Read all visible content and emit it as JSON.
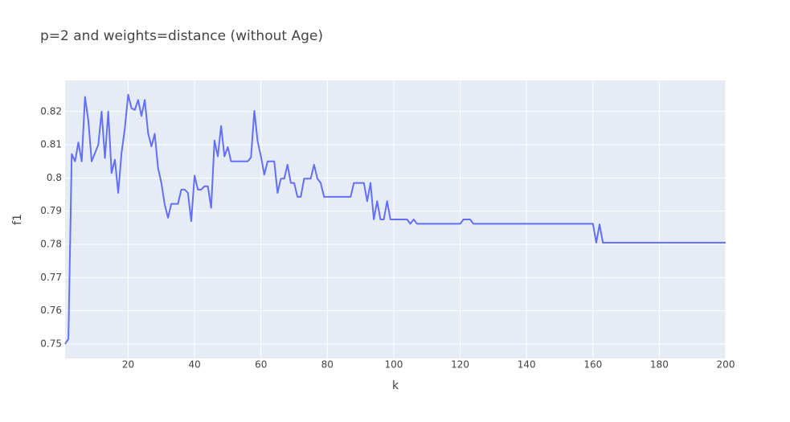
{
  "chart_data": {
    "type": "line",
    "title": "p=2 and weights=distance (without Age)",
    "x_label": "k",
    "y_label": "f1",
    "color": "#636efa",
    "grid": true,
    "x": [
      1,
      2,
      3,
      4,
      5,
      6,
      7,
      8,
      9,
      10,
      11,
      12,
      13,
      14,
      15,
      16,
      17,
      18,
      19,
      20,
      21,
      22,
      23,
      24,
      25,
      26,
      27,
      28,
      29,
      30,
      31,
      32,
      33,
      34,
      35,
      36,
      37,
      38,
      39,
      40,
      41,
      42,
      43,
      44,
      45,
      46,
      47,
      48,
      49,
      50,
      51,
      52,
      53,
      54,
      55,
      56,
      57,
      58,
      59,
      60,
      61,
      62,
      63,
      64,
      65,
      66,
      67,
      68,
      69,
      70,
      71,
      72,
      73,
      74,
      75,
      76,
      77,
      78,
      79,
      80,
      81,
      82,
      83,
      84,
      85,
      86,
      87,
      88,
      89,
      90,
      91,
      92,
      93,
      94,
      95,
      96,
      97,
      98,
      99,
      100,
      101,
      102,
      103,
      104,
      105,
      106,
      107,
      108,
      109,
      110,
      111,
      112,
      113,
      114,
      115,
      116,
      117,
      118,
      119,
      120,
      121,
      122,
      123,
      124,
      125,
      126,
      127,
      128,
      129,
      130,
      131,
      132,
      133,
      134,
      135,
      136,
      137,
      138,
      139,
      140,
      141,
      142,
      143,
      144,
      145,
      146,
      147,
      148,
      149,
      150,
      151,
      152,
      153,
      154,
      155,
      156,
      157,
      158,
      159,
      160,
      161,
      162,
      163,
      164,
      165,
      166,
      167,
      168,
      169,
      170,
      171,
      172,
      173,
      174,
      175,
      176,
      177,
      178,
      179,
      180,
      181,
      182,
      183,
      184,
      185,
      186,
      187,
      188,
      189,
      190,
      191,
      192,
      193,
      194,
      195,
      196,
      197,
      198,
      199,
      200
    ],
    "values": [
      0.75,
      0.7515,
      0.8072,
      0.805,
      0.8107,
      0.805,
      0.8244,
      0.8173,
      0.805,
      0.8075,
      0.81,
      0.82,
      0.806,
      0.82,
      0.8015,
      0.8055,
      0.7955,
      0.8075,
      0.815,
      0.8251,
      0.821,
      0.8205,
      0.8235,
      0.8187,
      0.8235,
      0.8135,
      0.8095,
      0.8133,
      0.803,
      0.7985,
      0.792,
      0.788,
      0.7922,
      0.7922,
      0.7922,
      0.7965,
      0.7965,
      0.7955,
      0.787,
      0.8007,
      0.7965,
      0.7965,
      0.7975,
      0.7975,
      0.791,
      0.8113,
      0.8065,
      0.8157,
      0.8065,
      0.8093,
      0.805,
      0.805,
      0.805,
      0.805,
      0.805,
      0.805,
      0.8062,
      0.8202,
      0.811,
      0.8065,
      0.801,
      0.805,
      0.805,
      0.805,
      0.7955,
      0.7998,
      0.7998,
      0.804,
      0.7985,
      0.7985,
      0.7943,
      0.7943,
      0.7998,
      0.7998,
      0.7998,
      0.804,
      0.7998,
      0.7985,
      0.7943,
      0.7943,
      0.7943,
      0.7943,
      0.7943,
      0.7943,
      0.7943,
      0.7943,
      0.7943,
      0.7985,
      0.7985,
      0.7985,
      0.7985,
      0.793,
      0.7985,
      0.7875,
      0.793,
      0.7875,
      0.7875,
      0.793,
      0.7875,
      0.7875,
      0.7875,
      0.7875,
      0.7875,
      0.7875,
      0.7862,
      0.7875,
      0.7862,
      0.7862,
      0.7862,
      0.7862,
      0.7862,
      0.7862,
      0.7862,
      0.7862,
      0.7862,
      0.7862,
      0.7862,
      0.7862,
      0.7862,
      0.7862,
      0.7875,
      0.7875,
      0.7875,
      0.7862,
      0.7862,
      0.7862,
      0.7862,
      0.7862,
      0.7862,
      0.7862,
      0.7862,
      0.7862,
      0.7862,
      0.7862,
      0.7862,
      0.7862,
      0.7862,
      0.7862,
      0.7862,
      0.7862,
      0.7862,
      0.7862,
      0.7862,
      0.7862,
      0.7862,
      0.7862,
      0.7862,
      0.7862,
      0.7862,
      0.7862,
      0.7862,
      0.7862,
      0.7862,
      0.7862,
      0.7862,
      0.7862,
      0.7862,
      0.7862,
      0.7862,
      0.7862,
      0.7805,
      0.786,
      0.7805,
      0.7805,
      0.7805,
      0.7805,
      0.7805,
      0.7805,
      0.7805,
      0.7805,
      0.7805,
      0.7805,
      0.7805,
      0.7805,
      0.7805,
      0.7805,
      0.7805,
      0.7805,
      0.7805,
      0.7805,
      0.7805,
      0.7805,
      0.7805,
      0.7805,
      0.7805,
      0.7805,
      0.7805,
      0.7805,
      0.7805,
      0.7805,
      0.7805,
      0.7805,
      0.7805,
      0.7805,
      0.7805,
      0.7805,
      0.7805,
      0.7805,
      0.7805,
      0.7805
    ],
    "xlim": [
      1,
      200
    ],
    "xticks": [
      20,
      40,
      60,
      80,
      100,
      120,
      140,
      160,
      180,
      200
    ],
    "ylim": [
      0.7456,
      0.8294
    ],
    "yticks": [
      0.75,
      0.76,
      0.77,
      0.78,
      0.79,
      0.8,
      0.81,
      0.82
    ]
  }
}
